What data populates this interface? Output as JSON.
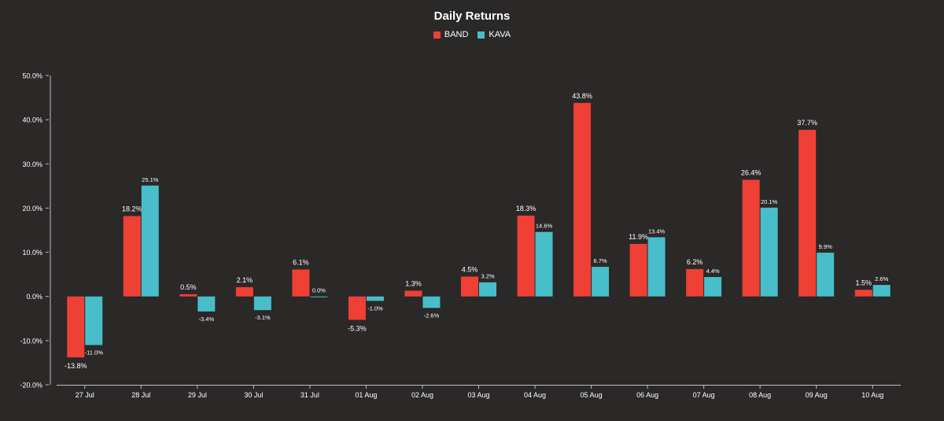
{
  "chart_data": {
    "type": "bar",
    "title": "Daily Returns",
    "xlabel": "",
    "ylabel": "",
    "ylim": [
      -20,
      50
    ],
    "yticks": [
      -20,
      -10,
      0,
      10,
      20,
      30,
      40,
      50
    ],
    "ytick_labels": [
      "-20.0%",
      "-10.0%",
      "0.0%",
      "10.0%",
      "20.0%",
      "30.0%",
      "40.0%",
      "50.0%"
    ],
    "legend_position": "top-center",
    "grid": false,
    "categories": [
      "27 Jul",
      "28 Jul",
      "29 Jul",
      "30 Jul",
      "31 Jul",
      "01 Aug",
      "02 Aug",
      "03 Aug",
      "04 Aug",
      "05 Aug",
      "06 Aug",
      "07 Aug",
      "08 Aug",
      "09 Aug",
      "10 Aug"
    ],
    "series": [
      {
        "name": "BAND",
        "color": "#ee4035",
        "values": [
          -13.8,
          18.2,
          0.5,
          2.1,
          6.1,
          -5.3,
          1.3,
          4.5,
          18.3,
          43.8,
          11.9,
          6.2,
          26.4,
          37.7,
          1.5
        ],
        "labels": [
          "-13.8%",
          "18.2%",
          "0.5%",
          "2.1%",
          "6.1%",
          "-5.3%",
          "1.3%",
          "4.5%",
          "18.3%",
          "43.8%",
          "11.9%",
          "6.2%",
          "26.4%",
          "37.7%",
          "1.5%"
        ]
      },
      {
        "name": "KAVA",
        "color": "#47bec9",
        "values": [
          -11.0,
          25.1,
          -3.4,
          -3.1,
          0.0,
          -1.0,
          -2.6,
          3.2,
          14.6,
          6.7,
          13.4,
          4.4,
          20.1,
          9.9,
          2.6
        ],
        "labels": [
          "-11.0%",
          "25.1%",
          "-3.4%",
          "-3.1%",
          "0.0%",
          "-1.0%",
          "-2.6%",
          "3.2%",
          "14.6%",
          "6.7%",
          "13.4%",
          "4.4%",
          "20.1%",
          "9.9%",
          "2.6%"
        ]
      }
    ]
  }
}
